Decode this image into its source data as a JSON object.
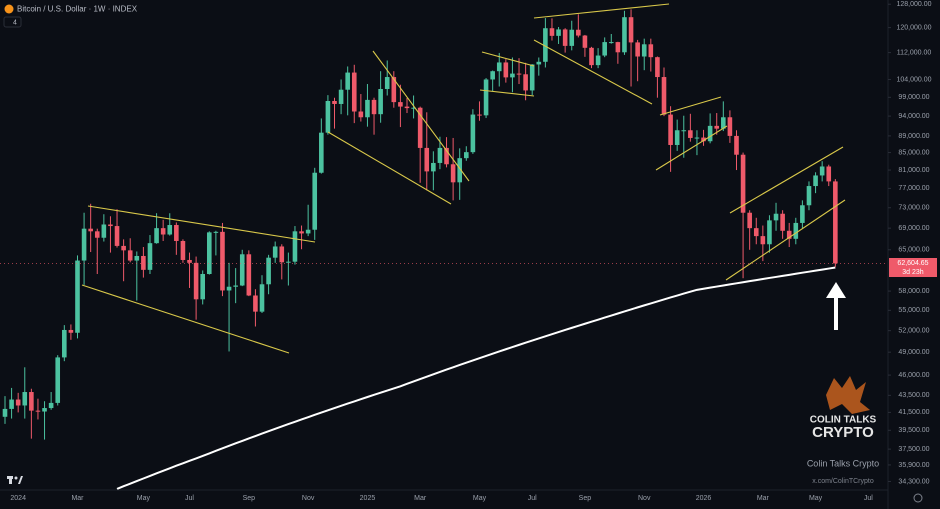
{
  "header": {
    "title": "Bitcoin / U.S. Dollar · 1W · INDEX",
    "indicator_count": "4"
  },
  "chart_data": {
    "type": "candlestick",
    "log_scale": true,
    "grid": false,
    "up_color": "#4cc2a0",
    "down_color": "#ef5a6a",
    "categories": [
      null,
      null,
      "2024",
      null,
      null,
      null,
      null,
      null,
      null,
      null,
      null,
      "Mar",
      null,
      null,
      null,
      null,
      null,
      null,
      null,
      null,
      null,
      "May",
      null,
      null,
      null,
      null,
      null,
      null,
      "Jul",
      null,
      null,
      null,
      null,
      null,
      null,
      null,
      null,
      "Sep",
      null,
      null,
      null,
      null,
      null,
      null,
      null,
      null,
      "Nov",
      null,
      null,
      null,
      null,
      null,
      null,
      null,
      null,
      "2025",
      null,
      null,
      null,
      null,
      null,
      null,
      null,
      "Mar",
      null,
      null,
      null,
      null,
      null,
      null,
      null,
      null,
      "May",
      null,
      null,
      null,
      null,
      null,
      null,
      null,
      "Jul",
      null,
      null,
      null,
      null,
      null,
      null,
      null,
      "Sep",
      null,
      null,
      null,
      null,
      null,
      null,
      null,
      null,
      "Nov",
      null,
      null,
      null,
      null,
      null,
      null,
      null,
      null,
      "2026",
      null,
      null,
      null,
      null,
      null,
      null,
      null,
      null,
      "Mar",
      null,
      null,
      null,
      null,
      null,
      null,
      null,
      "May",
      null,
      null,
      null,
      null,
      null,
      null,
      null,
      "Jul"
    ],
    "open": [
      41000,
      41900,
      43000,
      42300,
      43900,
      41700,
      41600,
      42000,
      42600,
      48300,
      52100,
      51700,
      63100,
      68900,
      68400,
      67200,
      69700,
      69400,
      65700,
      64900,
      63100,
      63900,
      61500,
      66200,
      69000,
      67800,
      69600,
      66600,
      63200,
      62700,
      56700,
      60800,
      68200,
      68300,
      58100,
      58700,
      58900,
      64200,
      57300,
      54800,
      59100,
      63600,
      65600,
      62800,
      62900,
      68400,
      68000,
      68700,
      80400,
      89800,
      98000,
      97200,
      101100,
      106000,
      95200,
      93700,
      98300,
      94500,
      101300,
      104700,
      97700,
      96500,
      96100,
      96200,
      86100,
      80700,
      82600,
      86100,
      82300,
      78300,
      83700,
      85100,
      94400,
      94200,
      104000,
      106400,
      109000,
      104600,
      105700,
      105500,
      100900,
      108400,
      109200,
      119800,
      117300,
      119400,
      114100,
      119300,
      117400,
      113500,
      108200,
      111100,
      115300,
      115300,
      112100,
      123500,
      115200,
      110800,
      114600,
      110600,
      104700,
      94400,
      86800,
      90400,
      90400,
      88500,
      88600,
      87700,
      91500,
      90800,
      93700,
      89000,
      84500,
      72000,
      69000,
      67500,
      66000,
      70500,
      71800,
      68500,
      67000,
      70000,
      73500,
      77500,
      79800,
      81800,
      78500,
      null,
      null,
      null,
      null,
      null
    ],
    "high": [
      43400,
      44400,
      43800,
      47000,
      44300,
      43100,
      42800,
      43900,
      48600,
      52800,
      52900,
      64000,
      72000,
      73800,
      68900,
      71700,
      71300,
      72700,
      66900,
      67100,
      64700,
      65500,
      67700,
      71900,
      70600,
      71900,
      70100,
      66900,
      64500,
      63800,
      61400,
      68400,
      68500,
      70000,
      62700,
      61800,
      65000,
      64900,
      58300,
      60600,
      64100,
      66500,
      66000,
      64500,
      69400,
      69500,
      73600,
      81500,
      93400,
      99600,
      98900,
      104000,
      107800,
      108300,
      99900,
      102700,
      98900,
      106400,
      109600,
      106400,
      102500,
      98800,
      99500,
      96500,
      95000,
      85300,
      88800,
      88700,
      88500,
      86000,
      86500,
      95800,
      97900,
      104400,
      106600,
      111900,
      110000,
      110500,
      110300,
      108900,
      108500,
      110500,
      123200,
      123100,
      120200,
      119800,
      122300,
      124500,
      117600,
      113800,
      113400,
      116800,
      117900,
      115400,
      125700,
      126200,
      116000,
      116400,
      116400,
      110800,
      107500,
      96600,
      93100,
      94100,
      94600,
      90400,
      90500,
      94700,
      94800,
      97900,
      95500,
      90400,
      85000,
      72500,
      71000,
      69500,
      71500,
      74000,
      72500,
      70000,
      71000,
      74500,
      78500,
      80500,
      83000,
      82200,
      79000,
      null,
      null,
      null,
      null,
      null
    ],
    "low": [
      40200,
      40800,
      41500,
      40800,
      38600,
      40700,
      38500,
      41800,
      42300,
      47800,
      50700,
      50900,
      59000,
      64600,
      60800,
      66500,
      64500,
      65400,
      59600,
      62800,
      56500,
      60200,
      60800,
      66100,
      66600,
      67600,
      64100,
      62700,
      58500,
      53600,
      55900,
      60700,
      64000,
      57200,
      49100,
      56100,
      58800,
      57200,
      52600,
      54600,
      57500,
      62700,
      59900,
      58900,
      62400,
      65100,
      67500,
      66800,
      80200,
      89300,
      90800,
      94500,
      94200,
      92200,
      92600,
      91300,
      89300,
      92300,
      99500,
      96200,
      91200,
      94800,
      93400,
      78200,
      76600,
      76600,
      81200,
      81600,
      74500,
      74600,
      83100,
      84700,
      92800,
      93500,
      100700,
      102000,
      103100,
      100400,
      102700,
      98200,
      99600,
      105100,
      107500,
      115800,
      114700,
      112000,
      112700,
      116800,
      110700,
      107300,
      107300,
      110600,
      114800,
      108600,
      111300,
      102000,
      103500,
      106700,
      106300,
      98900,
      94000,
      80600,
      85400,
      83800,
      87600,
      84400,
      86600,
      87200,
      89300,
      90200,
      87300,
      81000,
      60100,
      65000,
      66000,
      63000,
      64500,
      68500,
      67000,
      65500,
      66000,
      69000,
      72500,
      76000,
      78500,
      77500,
      62000,
      null,
      null,
      null,
      null,
      null
    ],
    "close": [
      41900,
      43000,
      42300,
      43900,
      41700,
      41600,
      42000,
      42600,
      48300,
      52100,
      51700,
      63100,
      68900,
      68400,
      67200,
      69700,
      69400,
      65700,
      64900,
      63100,
      63900,
      61500,
      66200,
      69000,
      67800,
      69600,
      66600,
      63200,
      62700,
      56700,
      60800,
      68200,
      68300,
      58100,
      58700,
      58900,
      64200,
      57300,
      54800,
      59100,
      63600,
      65600,
      62800,
      62900,
      68400,
      68000,
      68700,
      80400,
      89800,
      98000,
      97200,
      101100,
      106000,
      95200,
      93700,
      98300,
      94500,
      101300,
      104700,
      97700,
      96500,
      96100,
      96200,
      86100,
      80700,
      82600,
      86100,
      82300,
      78300,
      83700,
      85100,
      94400,
      94200,
      104000,
      106400,
      109000,
      104600,
      105700,
      105500,
      100900,
      108400,
      109200,
      119800,
      117300,
      119400,
      114100,
      119300,
      117400,
      113500,
      108200,
      111100,
      115300,
      115300,
      112100,
      123500,
      115200,
      110800,
      114600,
      110600,
      104700,
      94400,
      86800,
      90400,
      90400,
      88500,
      88600,
      87700,
      91500,
      90800,
      93700,
      89000,
      84500,
      72000,
      69000,
      67500,
      66000,
      70500,
      71800,
      68500,
      67000,
      70000,
      73500,
      77500,
      79800,
      81800,
      78500,
      62604.65,
      null,
      null,
      null,
      null,
      null
    ],
    "overlay": {
      "color": "#ffffff",
      "values": [
        null,
        null,
        null,
        null,
        null,
        null,
        null,
        null,
        null,
        null,
        null,
        null,
        null,
        null,
        null,
        null,
        null,
        33600,
        33850,
        34090,
        34340,
        34580,
        34830,
        35080,
        35320,
        35570,
        35820,
        36060,
        36310,
        36550,
        36800,
        37060,
        37320,
        37580,
        37840,
        38100,
        38360,
        38620,
        38880,
        39140,
        39400,
        39660,
        39920,
        40180,
        40440,
        40700,
        40960,
        41220,
        41480,
        41740,
        42000,
        42260,
        42520,
        42780,
        43040,
        43300,
        43560,
        43820,
        44080,
        44340,
        44600,
        44900,
        45200,
        45500,
        45800,
        46100,
        46400,
        46700,
        47000,
        47300,
        47600,
        47900,
        48200,
        48500,
        48800,
        49100,
        49400,
        49700,
        50000,
        50300,
        50600,
        50900,
        51200,
        51500,
        51800,
        52100,
        52400,
        52700,
        53000,
        53300,
        53600,
        53910,
        54210,
        54520,
        54830,
        55140,
        55450,
        55760,
        56060,
        56370,
        56680,
        56990,
        57290,
        57600,
        57900,
        58200,
        58380,
        58550,
        58730,
        58900,
        59080,
        59260,
        59430,
        59610,
        59780,
        59960,
        60140,
        60310,
        60490,
        60660,
        60840,
        61020,
        61190,
        61370,
        61540,
        61720,
        61900,
        null,
        null,
        null,
        null,
        null
      ]
    },
    "ylim": [
      33500,
      129500
    ],
    "yticks": [
      {
        "value": 128000,
        "label": "128,000.00"
      },
      {
        "value": 120000,
        "label": "120,000.00"
      },
      {
        "value": 112000,
        "label": "112,000.00"
      },
      {
        "value": 104000,
        "label": "104,000.00"
      },
      {
        "value": 99000,
        "label": "99,000.00"
      },
      {
        "value": 94000,
        "label": "94,000.00"
      },
      {
        "value": 89000,
        "label": "89,000.00"
      },
      {
        "value": 85000,
        "label": "85,000.00"
      },
      {
        "value": 81000,
        "label": "81,000.00"
      },
      {
        "value": 77000,
        "label": "77,000.00"
      },
      {
        "value": 73000,
        "label": "73,000.00"
      },
      {
        "value": 69000,
        "label": "69,000.00"
      },
      {
        "value": 65000,
        "label": "65,000.00"
      },
      {
        "value": 58000,
        "label": "58,000.00"
      },
      {
        "value": 55000,
        "label": "55,000.00"
      },
      {
        "value": 52000,
        "label": "52,000.00"
      },
      {
        "value": 49000,
        "label": "49,000.00"
      },
      {
        "value": 46000,
        "label": "46,000.00"
      },
      {
        "value": 43500,
        "label": "43,500.00"
      },
      {
        "value": 41500,
        "label": "41,500.00"
      },
      {
        "value": 39500,
        "label": "39,500.00"
      },
      {
        "value": 37500,
        "label": "37,500.00"
      },
      {
        "value": 35900,
        "label": "35,900.00"
      },
      {
        "value": 34300,
        "label": "34,300.00"
      }
    ],
    "last_price": {
      "value": 62604.65,
      "label": "62,604.65"
    },
    "countdown": "3d 23h"
  },
  "watermark": {
    "brand_line1": "COLIN TALKS",
    "brand_line2": "CRYPTO",
    "name": "Colin Talks Crypto",
    "handle": "x.com/ColinTCrypto"
  }
}
